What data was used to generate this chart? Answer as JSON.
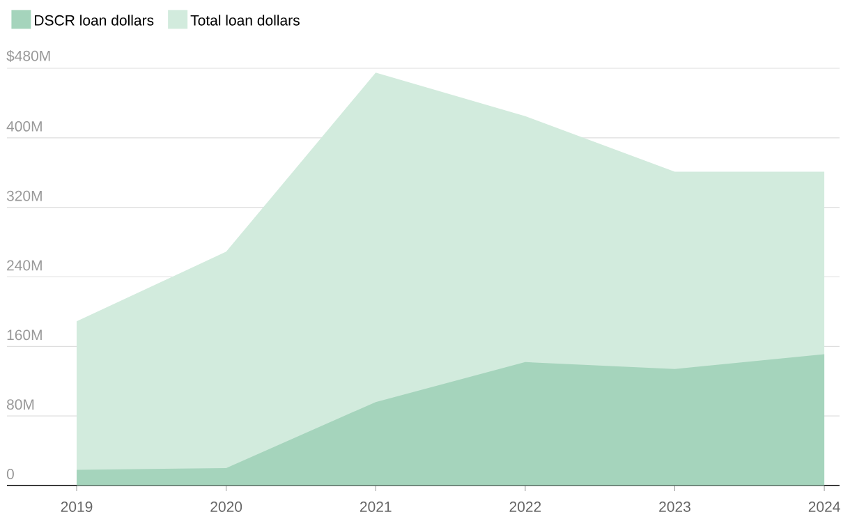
{
  "chart_data": {
    "type": "area",
    "categories": [
      "2019",
      "2020",
      "2021",
      "2022",
      "2023",
      "2024"
    ],
    "series": [
      {
        "name": "Total loan dollars",
        "color": "#d2ebdd",
        "values": [
          189,
          269,
          475,
          425,
          361,
          361
        ]
      },
      {
        "name": "DSCR loan dollars",
        "color": "#a5d4bc",
        "values": [
          18,
          20,
          96,
          142,
          134,
          151
        ]
      }
    ],
    "ylim": [
      0,
      480
    ],
    "yticks": [
      0,
      {
        "value": 80,
        "label": "80M"
      },
      {
        "value": 160,
        "label": "160M"
      },
      {
        "value": 240,
        "label": "240M"
      },
      {
        "value": 320,
        "label": "320M"
      },
      {
        "value": 400,
        "label": "400M"
      },
      {
        "value": 480,
        "label": "$480M"
      }
    ],
    "grid": "y",
    "legend": "top left"
  }
}
